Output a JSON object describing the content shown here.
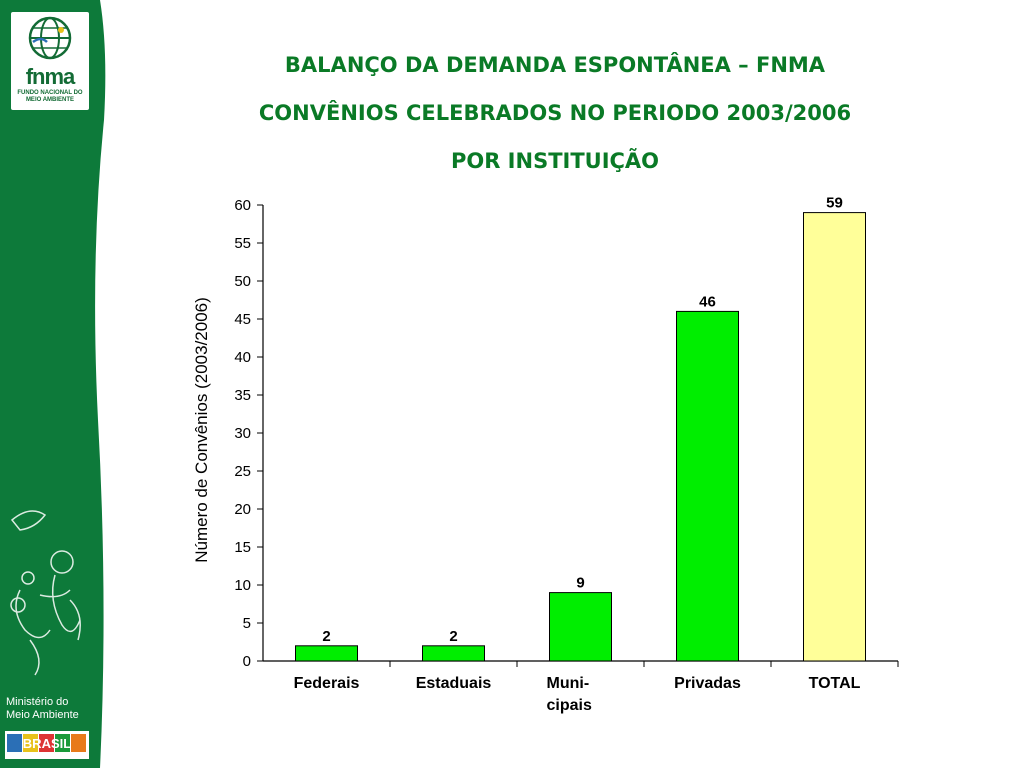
{
  "logo": {
    "name": "fnma",
    "subtitle": "FUNDO NACIONAL DO MEIO AMBIENTE"
  },
  "ministry": {
    "line1": "Ministério do",
    "line2": "Meio Ambiente"
  },
  "brasil_logo": {
    "text": "BRASIL"
  },
  "colors": {
    "sidebar": "#0d7a3a",
    "bar": "#00ee00",
    "total_bar": "#ffff99",
    "title": "#0a7a26"
  },
  "chart_data": {
    "type": "bar",
    "title_lines": [
      "BALANÇO DA DEMANDA ESPONTÂNEA – FNMA",
      "CONVÊNIOS CELEBRADOS NO PERIODO 2003/2006",
      "POR INSTITUIÇÃO"
    ],
    "ylabel": "Número de Convênios (2003/2006)",
    "xlabel": "",
    "categories": [
      [
        "Federais"
      ],
      [
        "Estaduais"
      ],
      [
        "Muni-",
        "cipais"
      ],
      [
        "Privadas"
      ],
      [
        "TOTAL"
      ]
    ],
    "values": [
      2,
      2,
      9,
      46,
      59
    ],
    "bar_colors": [
      "#00ee00",
      "#00ee00",
      "#00ee00",
      "#00ee00",
      "#ffff99"
    ],
    "ylim": [
      0,
      60
    ],
    "yticks": [
      0,
      5,
      10,
      15,
      20,
      25,
      30,
      35,
      40,
      45,
      50,
      55,
      60
    ],
    "data_labels": true,
    "grid": false
  }
}
